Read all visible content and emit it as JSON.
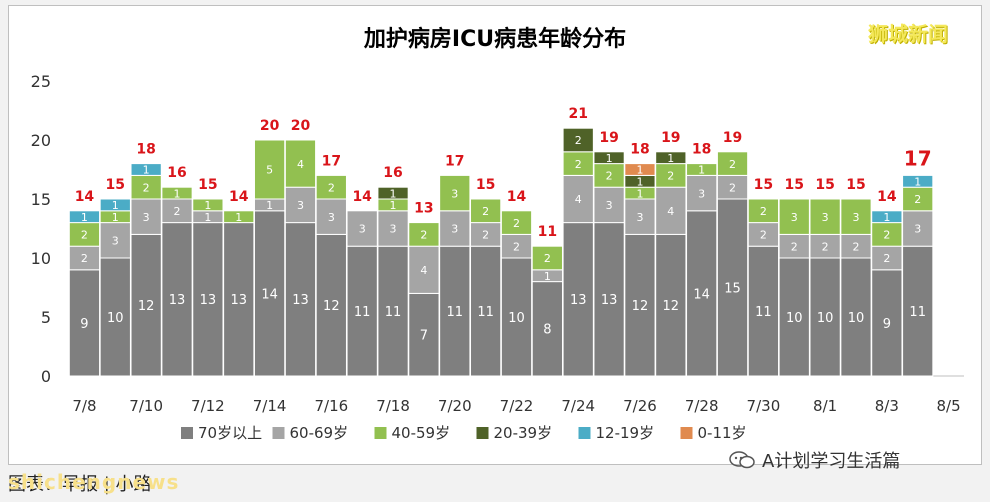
{
  "watermark": "狮城新闻",
  "credit": "图表：早报 | 小路",
  "credit_overlay": "shichengnews",
  "wechat_account": "A计划学习生活篇",
  "chart_data": {
    "type": "bar",
    "stacked": true,
    "title": "加护病房ICU病患年龄分布",
    "ylim": [
      0,
      25
    ],
    "yticks": [
      0,
      5,
      10,
      15,
      20,
      25
    ],
    "categories": [
      "7/8",
      "7/9",
      "7/10",
      "7/11",
      "7/12",
      "7/13",
      "7/14",
      "7/15",
      "7/16",
      "7/17",
      "7/18",
      "7/19",
      "7/20",
      "7/21",
      "7/22",
      "7/23",
      "7/24",
      "7/25",
      "7/26",
      "7/27",
      "7/28",
      "7/29",
      "7/30",
      "7/31",
      "8/1",
      "8/2",
      "8/3",
      "8/4",
      "8/5"
    ],
    "xtick_labels": [
      "7/8",
      "7/10",
      "7/12",
      "7/14",
      "7/16",
      "7/18",
      "7/20",
      "7/22",
      "7/24",
      "7/26",
      "7/28",
      "7/30",
      "8/1",
      "8/3",
      "8/5"
    ],
    "series": [
      {
        "name": "70岁以上",
        "color": "#7f7f7f",
        "values": [
          9,
          10,
          12,
          13,
          13,
          13,
          14,
          13,
          12,
          11,
          11,
          7,
          11,
          11,
          10,
          8,
          13,
          13,
          12,
          12,
          14,
          15,
          11,
          10,
          10,
          10,
          9,
          11,
          0
        ]
      },
      {
        "name": "60-69岁",
        "color": "#a5a5a5",
        "values": [
          2,
          3,
          3,
          2,
          1,
          0,
          1,
          3,
          3,
          3,
          3,
          4,
          3,
          2,
          2,
          1,
          4,
          3,
          3,
          4,
          3,
          2,
          2,
          2,
          2,
          2,
          2,
          3,
          0
        ]
      },
      {
        "name": "40-59岁",
        "color": "#92c050",
        "values": [
          2,
          1,
          2,
          1,
          1,
          1,
          5,
          4,
          2,
          0,
          1,
          2,
          3,
          2,
          2,
          2,
          2,
          2,
          1,
          2,
          1,
          2,
          2,
          3,
          3,
          3,
          2,
          2,
          0
        ]
      },
      {
        "name": "20-39岁",
        "color": "#4f6228",
        "values": [
          0,
          0,
          0,
          0,
          0,
          0,
          0,
          0,
          0,
          0,
          1,
          0,
          0,
          0,
          0,
          0,
          2,
          1,
          1,
          1,
          0,
          0,
          0,
          0,
          0,
          0,
          0,
          0,
          0
        ]
      },
      {
        "name": "12-19岁",
        "color": "#4bacc6",
        "values": [
          1,
          1,
          1,
          0,
          0,
          0,
          0,
          0,
          0,
          0,
          0,
          0,
          0,
          0,
          0,
          0,
          0,
          0,
          0,
          0,
          0,
          0,
          0,
          0,
          0,
          0,
          1,
          1,
          0
        ]
      },
      {
        "name": "0-11岁",
        "color": "#e08a4f",
        "values": [
          0,
          0,
          0,
          0,
          0,
          0,
          0,
          0,
          0,
          0,
          0,
          0,
          0,
          0,
          0,
          0,
          0,
          0,
          1,
          0,
          0,
          0,
          0,
          0,
          0,
          0,
          0,
          0,
          0
        ]
      }
    ],
    "totals": [
      14,
      15,
      18,
      16,
      15,
      14,
      20,
      20,
      17,
      14,
      16,
      13,
      17,
      15,
      14,
      11,
      21,
      19,
      18,
      19,
      18,
      19,
      15,
      15,
      15,
      15,
      14,
      17,
      null
    ],
    "total_color": "#d9151a",
    "highlight_index": 27,
    "legend_position": "bottom"
  }
}
